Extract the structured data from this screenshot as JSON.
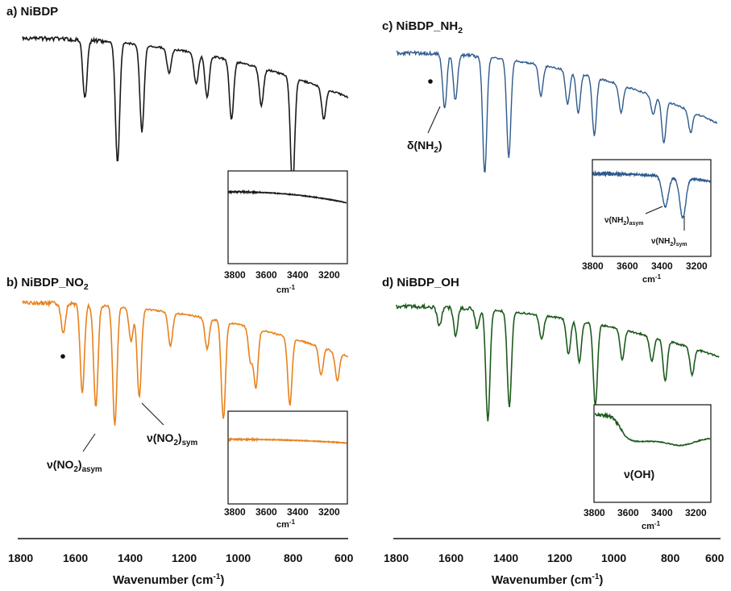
{
  "chart_data": [
    {
      "panel": "a",
      "type": "line",
      "title_main": "a) NiBDP",
      "title_sub": "",
      "color": "#1a1a1a",
      "xlim": [
        1800,
        600
      ],
      "main_peaks": [
        [
          1570,
          0.38
        ],
        [
          1450,
          0.78
        ],
        [
          1360,
          0.56
        ],
        [
          1260,
          0.16
        ],
        [
          1160,
          0.2
        ],
        [
          1120,
          0.27
        ],
        [
          1030,
          0.38
        ],
        [
          920,
          0.24
        ],
        [
          805,
          0.72
        ],
        [
          690,
          0.2
        ]
      ],
      "main_base": [
        0.04,
        0.42
      ],
      "inset": {
        "xlim": [
          3800,
          3200
        ],
        "ticks": [
          "3800",
          "3600",
          "3400",
          "3200"
        ],
        "unit_main": "cm",
        "unit_sup": "-1",
        "peaks": [],
        "base": [
          0.22,
          0.34
        ]
      },
      "annotations": []
    },
    {
      "panel": "b",
      "type": "line",
      "title_main": "b) NiBDP_NO",
      "title_sub": "2",
      "color": "#e8821e",
      "xlim": [
        1800,
        600
      ],
      "main_peaks": [
        [
          1650,
          0.2
        ],
        [
          1580,
          0.58
        ],
        [
          1530,
          0.68
        ],
        [
          1460,
          0.78
        ],
        [
          1400,
          0.22
        ],
        [
          1370,
          0.58
        ],
        [
          1255,
          0.22
        ],
        [
          1120,
          0.2
        ],
        [
          1060,
          0.64
        ],
        [
          960,
          0.22
        ],
        [
          940,
          0.38
        ],
        [
          815,
          0.44
        ],
        [
          700,
          0.18
        ],
        [
          640,
          0.18
        ]
      ],
      "main_base": [
        0.03,
        0.38
      ],
      "inset": {
        "xlim": [
          3800,
          3200
        ],
        "ticks": [
          "3800",
          "3600",
          "3400",
          "3200"
        ],
        "unit_main": "cm",
        "unit_sup": "-1",
        "peaks": [],
        "base": [
          0.3,
          0.34
        ]
      },
      "annotations": [
        {
          "main": "ν(NO",
          "sub": "2",
          "tail": ")",
          "subscript_end": "asym"
        },
        {
          "main": "ν(NO",
          "sub": "2",
          "tail": ")",
          "subscript_end": "sym"
        }
      ]
    },
    {
      "panel": "c",
      "type": "line",
      "title_main": "c) NiBDP_NH",
      "title_sub": "2",
      "color": "#2d5a8c",
      "xlim": [
        1800,
        600
      ],
      "main_peaks": [
        [
          1620,
          0.36
        ],
        [
          1580,
          0.3
        ],
        [
          1470,
          0.76
        ],
        [
          1380,
          0.64
        ],
        [
          1260,
          0.2
        ],
        [
          1160,
          0.22
        ],
        [
          1120,
          0.26
        ],
        [
          1060,
          0.38
        ],
        [
          960,
          0.18
        ],
        [
          840,
          0.12
        ],
        [
          800,
          0.28
        ],
        [
          700,
          0.14
        ]
      ],
      "main_base": [
        0.04,
        0.5
      ],
      "inset": {
        "xlim": [
          3800,
          3200
        ],
        "ticks": [
          "3800",
          "3600",
          "3400",
          "3200"
        ],
        "unit_main": "cm",
        "unit_sup": "-1",
        "peaks": [
          [
            3430,
            0.32
          ],
          [
            3340,
            0.42
          ]
        ],
        "base": [
          0.14,
          0.22
        ]
      },
      "annotations": [
        {
          "main": "δ(NH",
          "sub": "2",
          "tail": ")",
          "subscript_end": ""
        },
        {
          "main": "ν(NH",
          "sub": "2",
          "tail": ")",
          "subscript_end": "asym"
        },
        {
          "main": "ν(NH",
          "sub": "2",
          "tail": ")",
          "subscript_end": "sym"
        }
      ]
    },
    {
      "panel": "d",
      "type": "line",
      "title_main": "d) NiBDP_OH",
      "title_sub": "",
      "color": "#1d5a1d",
      "xlim": [
        1800,
        600
      ],
      "main_peaks": [
        [
          1640,
          0.14
        ],
        [
          1580,
          0.2
        ],
        [
          1500,
          0.14
        ],
        [
          1460,
          0.82
        ],
        [
          1380,
          0.7
        ],
        [
          1260,
          0.18
        ],
        [
          1160,
          0.26
        ],
        [
          1120,
          0.3
        ],
        [
          1060,
          0.6
        ],
        [
          960,
          0.22
        ],
        [
          850,
          0.18
        ],
        [
          800,
          0.3
        ],
        [
          700,
          0.2
        ]
      ],
      "main_base": [
        0.05,
        0.42
      ],
      "inset": {
        "xlim": [
          3800,
          3200
        ],
        "ticks": [
          "3800",
          "3600",
          "3400",
          "3200"
        ],
        "unit_main": "cm",
        "unit_sup": "-1",
        "peaks": [],
        "base": [
          0.1,
          0.42
        ]
      },
      "annotations": [
        {
          "main": "ν(OH)",
          "sub": "",
          "tail": "",
          "subscript_end": ""
        }
      ]
    }
  ],
  "x_axis": {
    "ticks": [
      "1800",
      "1600",
      "1400",
      "1200",
      "1000",
      "800",
      "600"
    ],
    "label_main": "Wavenumber (cm",
    "label_sup": "-1",
    "label_tail": ")"
  }
}
